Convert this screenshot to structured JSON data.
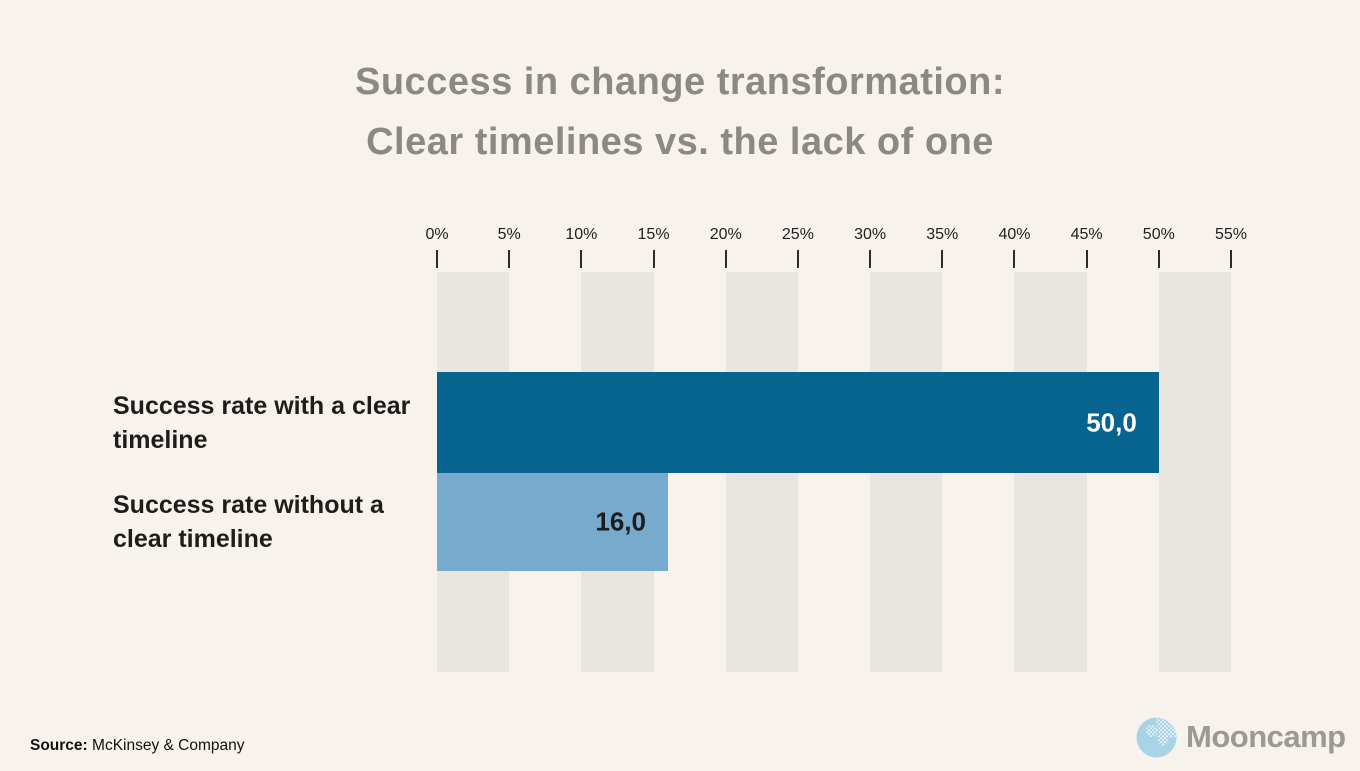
{
  "title": {
    "line1": "Success in change transformation:",
    "line2": "Clear timelines vs. the lack of one"
  },
  "chart_data": {
    "type": "bar",
    "orientation": "horizontal",
    "title": "Success in change transformation: Clear timelines vs. the lack of one",
    "categories": [
      "Success rate with a clear timeline",
      "Success rate without a clear timeline"
    ],
    "values": [
      50.0,
      16.0
    ],
    "value_labels": [
      "50,0",
      "16,0"
    ],
    "value_label_colors": [
      "#FFFFFF",
      "#1D1D1B"
    ],
    "bar_colors": [
      "#07648E",
      "#77ABCE"
    ],
    "xlim": [
      0,
      55
    ],
    "x_tick_values": [
      0,
      5,
      10,
      15,
      20,
      25,
      30,
      35,
      40,
      45,
      50,
      55
    ],
    "x_tick_labels": [
      "0%",
      "5%",
      "10%",
      "15%",
      "20%",
      "25%",
      "30%",
      "35%",
      "40%",
      "45%",
      "50%",
      "55%"
    ],
    "stripe_bands": [
      [
        0,
        5
      ],
      [
        10,
        15
      ],
      [
        20,
        25
      ],
      [
        30,
        35
      ],
      [
        40,
        45
      ],
      [
        50,
        55
      ]
    ],
    "grid": "alternating vertical bands",
    "legend": "none",
    "xlabel": "",
    "ylabel": ""
  },
  "footer": {
    "source_label": "Source:",
    "source_value": "McKinsey & Company"
  },
  "brand": {
    "name": "Mooncamp",
    "icon": "moon-icon"
  },
  "colors": {
    "background": "#F8F2EC",
    "stripe": "#E9E6E2",
    "title_text": "#8C8884",
    "category_text": "#1D1D1B",
    "tick_text": "#1E1E1E",
    "tick_mark": "#2B2B2B",
    "bar_primary": "#07648E",
    "bar_secondary": "#77ABCE",
    "brand_text": "#9C9892",
    "moon_fill": "#A9D3E6"
  }
}
